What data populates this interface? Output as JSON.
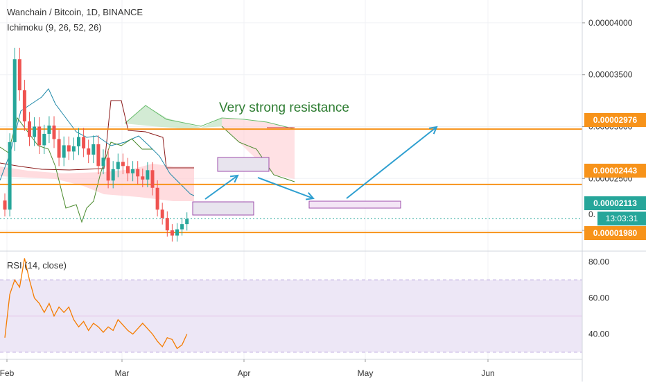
{
  "header": {
    "symbol_line": "Wanchain / Bitcoin, 1D, BINANCE",
    "indicator_line": "Ichimoku (9, 26, 52, 26)",
    "rsi_line": "RSI (14, close)"
  },
  "annotation": {
    "text": "Very strong resistance"
  },
  "price_tags": {
    "resistance": "0.00002976",
    "mid_line": "0.00002443",
    "last_price": "0.00002113",
    "countdown": "13:03:31",
    "support": "0.00001980",
    "partial_label": "0."
  },
  "colors": {
    "up": "#26a69a",
    "down": "#ef5350",
    "level": "#f7931a",
    "ichimoku_tenkan": "#1e88a8",
    "ichimoku_kijun": "#8b1a1a",
    "ichimoku_lagging": "#4a8a2c",
    "cloud_bull": "#c8e6c9",
    "cloud_bear": "#ffcdd2",
    "rsi_line": "#f57c00",
    "rsi_band": "#ede7f6",
    "arrow": "#2e9fd0",
    "box": "#9c4dab"
  },
  "chart_data": [
    {
      "type": "line",
      "title": "Wanchain / Bitcoin, 1D, BINANCE",
      "indicator": "Ichimoku (9, 26, 52, 26)",
      "x_axis_ticks": [
        "Feb",
        "Mar",
        "Apr",
        "May",
        "Jun"
      ],
      "y_axis_ticks": [
        "0.00004000",
        "0.00003500",
        "0.00003000",
        "0.00002500",
        "0.00002000"
      ],
      "ylim": [
        1.8e-05,
        4.22e-05
      ],
      "levels": [
        2.976e-05,
        2.443e-05,
        1.98e-05
      ],
      "last_price": 2.113e-05,
      "close_series": [
        2.2e-05,
        2.85e-05,
        3.65e-05,
        3.35e-05,
        3.05e-05,
        2.9e-05,
        3e-05,
        2.82e-05,
        2.93e-05,
        3.01e-05,
        2.88e-05,
        2.7e-05,
        2.82e-05,
        2.76e-05,
        2.81e-05,
        2.9e-05,
        2.79e-05,
        2.73e-05,
        2.83e-05,
        2.62e-05,
        2.7e-05,
        2.48e-05,
        2.59e-05,
        2.66e-05,
        2.62e-05,
        2.55e-05,
        2.59e-05,
        2.52e-05,
        2.49e-05,
        2.58e-05,
        2.41e-05,
        2.2e-05,
        2.12e-05,
        2e-05,
        1.95e-05,
        2.01e-05,
        2.06e-05,
        2.11e-05
      ]
    },
    {
      "type": "line",
      "title": "RSI (14, close)",
      "y_axis_ticks": [
        "80.00",
        "60.00",
        "40.00"
      ],
      "ylim": [
        26,
        86
      ],
      "band": [
        30,
        70
      ],
      "values": [
        38,
        62,
        70,
        66,
        82,
        70,
        60,
        57,
        52,
        57,
        50,
        55,
        52,
        55,
        48,
        44,
        47,
        42,
        46,
        44,
        41,
        44,
        42,
        48,
        45,
        42,
        40,
        43,
        46,
        43,
        40,
        36,
        33,
        38,
        37,
        32,
        34,
        40
      ]
    }
  ]
}
